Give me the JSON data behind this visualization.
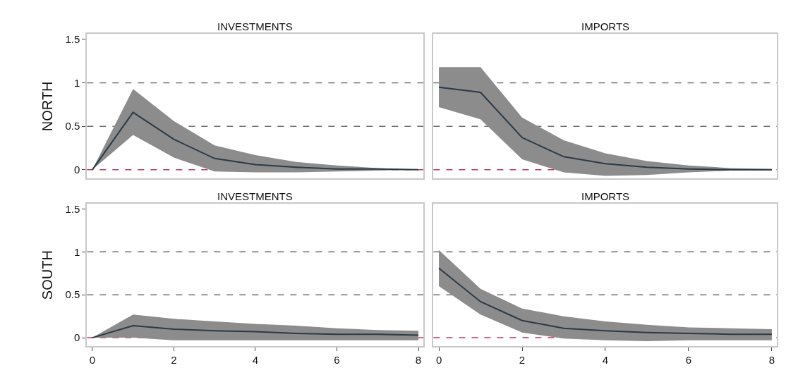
{
  "chart_data": [
    {
      "type": "line",
      "title": "INVESTMENTS",
      "ylabel": "NORTH",
      "x": [
        0,
        1,
        2,
        3,
        4,
        5,
        6,
        7,
        8
      ],
      "xlim": [
        -0.13,
        8.12
      ],
      "ylim": [
        -0.1,
        1.56
      ],
      "xticks": [
        0,
        2,
        4,
        6,
        8
      ],
      "yticks": [
        0,
        0.5,
        1,
        1.5
      ],
      "tick_labels": "y",
      "grid": false,
      "line_style": "solid",
      "series": [
        {
          "color": "#2b3a47",
          "values": [
            0,
            0.66,
            0.35,
            0.13,
            0.06,
            0.03,
            0.01,
            0.01,
            0
          ],
          "lower": [
            0,
            0.4,
            0.14,
            -0.02,
            -0.03,
            -0.03,
            -0.02,
            -0.01,
            0
          ],
          "upper": [
            0,
            0.93,
            0.56,
            0.28,
            0.17,
            0.09,
            0.05,
            0.02,
            0
          ]
        }
      ],
      "ref_lines": [
        {
          "axis": "y",
          "value": 1,
          "color": "#6e6e6e",
          "line_style": "dashed"
        },
        {
          "axis": "y",
          "value": 0.5,
          "color": "#6e6e6e",
          "line_style": "dashed"
        },
        {
          "axis": "y",
          "value": 0,
          "color": "#c0395a",
          "line_style": "dashed"
        }
      ]
    },
    {
      "type": "line",
      "title": "IMPORTS",
      "x": [
        0,
        1,
        2,
        3,
        4,
        5,
        6,
        7,
        8
      ],
      "xlim": [
        -0.13,
        8.12
      ],
      "ylim": [
        -0.1,
        1.56
      ],
      "xticks": [
        0,
        2,
        4,
        6,
        8
      ],
      "yticks": [
        0,
        0.5,
        1,
        1.5
      ],
      "tick_labels": false,
      "grid": false,
      "line_style": "solid",
      "series": [
        {
          "color": "#2b3a47",
          "values": [
            0.95,
            0.89,
            0.37,
            0.15,
            0.07,
            0.03,
            0.01,
            0,
            0
          ],
          "lower": [
            0.72,
            0.58,
            0.12,
            -0.03,
            -0.07,
            -0.06,
            -0.03,
            -0.01,
            -0.01
          ],
          "upper": [
            1.18,
            1.18,
            0.6,
            0.34,
            0.19,
            0.1,
            0.05,
            0.02,
            0.01
          ]
        }
      ],
      "ref_lines": [
        {
          "axis": "y",
          "value": 1,
          "color": "#6e6e6e",
          "line_style": "dashed"
        },
        {
          "axis": "y",
          "value": 0.5,
          "color": "#6e6e6e",
          "line_style": "dashed"
        },
        {
          "axis": "y",
          "value": 0,
          "color": "#c0395a",
          "line_style": "dashed"
        }
      ]
    },
    {
      "type": "line",
      "title": "INVESTMENTS",
      "ylabel": "SOUTH",
      "x": [
        0,
        1,
        2,
        3,
        4,
        5,
        6,
        7,
        8
      ],
      "xlim": [
        -0.13,
        8.12
      ],
      "ylim": [
        -0.1,
        1.56
      ],
      "xticks": [
        0,
        2,
        4,
        6,
        8
      ],
      "yticks": [
        0,
        0.5,
        1,
        1.5
      ],
      "grid": false,
      "line_style": "solid",
      "series": [
        {
          "color": "#2b3a47",
          "values": [
            0,
            0.14,
            0.1,
            0.08,
            0.07,
            0.05,
            0.04,
            0.04,
            0.03
          ],
          "lower": [
            0,
            0,
            -0.03,
            -0.03,
            -0.03,
            -0.03,
            -0.03,
            -0.03,
            -0.03
          ],
          "upper": [
            0,
            0.27,
            0.22,
            0.19,
            0.16,
            0.14,
            0.11,
            0.09,
            0.08
          ]
        }
      ],
      "ref_lines": [
        {
          "axis": "y",
          "value": 1,
          "color": "#6e6e6e",
          "line_style": "dashed"
        },
        {
          "axis": "y",
          "value": 0.5,
          "color": "#6e6e6e",
          "line_style": "dashed"
        },
        {
          "axis": "y",
          "value": 0,
          "color": "#c0395a",
          "line_style": "dashed"
        }
      ]
    },
    {
      "type": "line",
      "title": "IMPORTS",
      "x": [
        0,
        1,
        2,
        3,
        4,
        5,
        6,
        7,
        8
      ],
      "xlim": [
        -0.13,
        8.12
      ],
      "ylim": [
        -0.1,
        1.56
      ],
      "xticks": [
        0,
        2,
        4,
        6,
        8
      ],
      "yticks": [
        0,
        0.5,
        1,
        1.5
      ],
      "tick_labels": "x",
      "grid": false,
      "line_style": "solid",
      "series": [
        {
          "color": "#2b3a47",
          "values": [
            0.81,
            0.42,
            0.2,
            0.11,
            0.08,
            0.06,
            0.05,
            0.04,
            0.04
          ],
          "lower": [
            0.6,
            0.27,
            0.06,
            -0.01,
            -0.03,
            -0.04,
            -0.03,
            -0.03,
            -0.03
          ],
          "upper": [
            1.02,
            0.57,
            0.34,
            0.25,
            0.19,
            0.15,
            0.12,
            0.11,
            0.1
          ]
        }
      ],
      "ref_lines": [
        {
          "axis": "y",
          "value": 1,
          "color": "#6e6e6e",
          "line_style": "dashed"
        },
        {
          "axis": "y",
          "value": 0.5,
          "color": "#6e6e6e",
          "line_style": "dashed"
        },
        {
          "axis": "y",
          "value": 0,
          "color": "#c0395a",
          "line_style": "dashed"
        }
      ]
    }
  ]
}
